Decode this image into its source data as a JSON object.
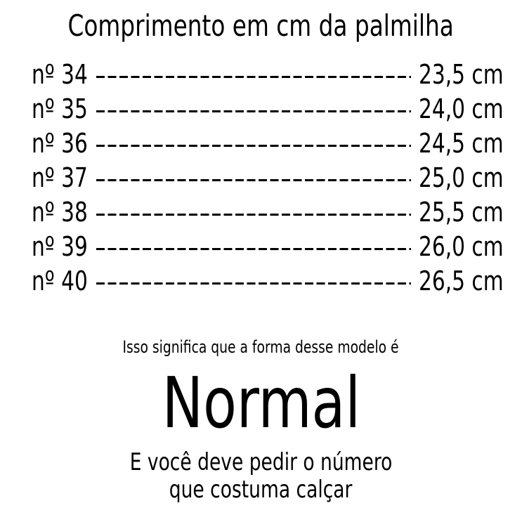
{
  "title": "Comprimento em cm da palmilha",
  "rows": [
    {
      "size": "nº 34",
      "length": "23,5 cm"
    },
    {
      "size": "nº 35",
      "length": "24,0 cm"
    },
    {
      "size": "nº 36",
      "length": "24,5 cm"
    },
    {
      "size": "nº 37",
      "length": "25,0 cm"
    },
    {
      "size": "nº 38",
      "length": "25,5 cm"
    },
    {
      "size": "nº 39",
      "length": "26,0 cm"
    },
    {
      "size": "nº 40",
      "length": "26,5 cm"
    }
  ],
  "note": "Isso significa que a forma desse modelo é",
  "result": "Normal",
  "advice_line1": "E você deve pedir o número",
  "advice_line2": "que costuma calçar"
}
